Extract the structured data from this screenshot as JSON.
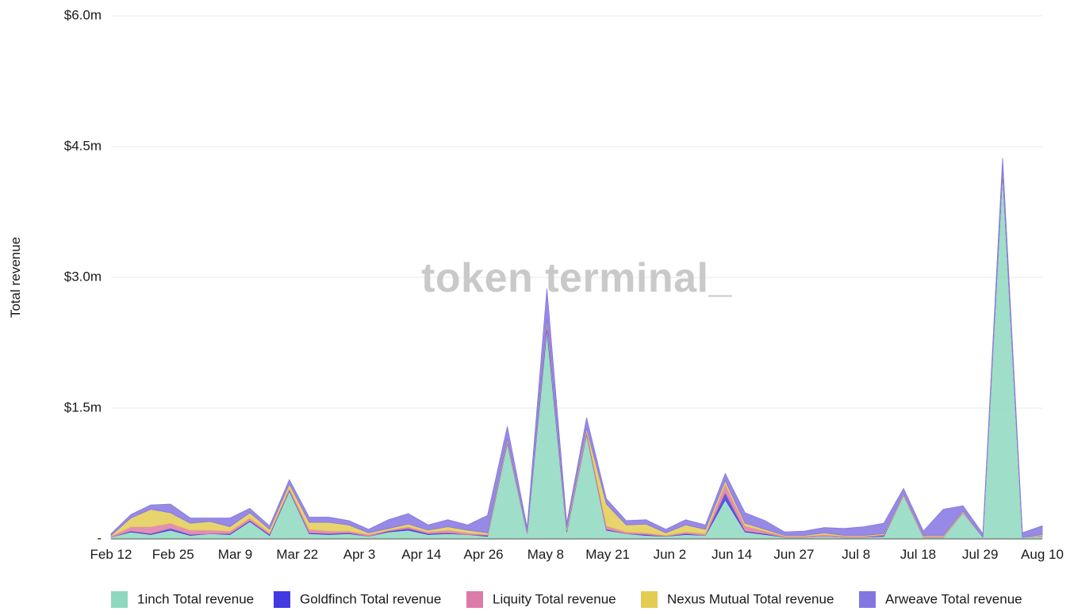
{
  "watermark": "token terminal_",
  "colors": {
    "1inch": "#8ed8c0",
    "Goldfinch": "#4339e0",
    "Liquity": "#dd7ba8",
    "Nexus Mutual": "#e3cc52",
    "Arweave": "#8476e2"
  },
  "chart_data": {
    "type": "area",
    "stacked": true,
    "ylabel": "Total revenue",
    "xlabel": "",
    "ylim": [
      0,
      6.0
    ],
    "y_unit": "$m",
    "y_ticks": [
      {
        "value": 0,
        "label": "-"
      },
      {
        "value": 1.5,
        "label": "$1.5m"
      },
      {
        "value": 3.0,
        "label": "$3.0m"
      },
      {
        "value": 4.5,
        "label": "$4.5m"
      },
      {
        "value": 6.0,
        "label": "$6.0m"
      }
    ],
    "x_ticks": [
      "Feb 12",
      "Feb 25",
      "Mar 9",
      "Mar 22",
      "Apr 3",
      "Apr 14",
      "Apr 26",
      "May 8",
      "May 21",
      "Jun 2",
      "Jun 14",
      "Jun 27",
      "Jul 8",
      "Jul 18",
      "Jul 29",
      "Aug 10"
    ],
    "grid": true,
    "legend_position": "bottom",
    "x": [
      "Feb 12",
      "Feb 17",
      "Feb 21",
      "Feb 25",
      "Mar 1",
      "Mar 5",
      "Mar 9",
      "Mar 13",
      "Mar 18",
      "Mar 22",
      "Mar 26",
      "Mar 30",
      "Apr 3",
      "Apr 6",
      "Apr 10",
      "Apr 14",
      "Apr 18",
      "Apr 22",
      "Apr 26",
      "May 2",
      "May 5",
      "May 8",
      "May 11",
      "May 14",
      "May 17",
      "May 21",
      "May 25",
      "May 29",
      "Jun 2",
      "Jun 6",
      "Jun 10",
      "Jun 14",
      "Jun 18",
      "Jun 22",
      "Jun 27",
      "Jul 1",
      "Jul 5",
      "Jul 8",
      "Jul 12",
      "Jul 15",
      "Jul 18",
      "Jul 22",
      "Jul 26",
      "Jul 29",
      "Aug 2",
      "Aug 4",
      "Aug 7",
      "Aug 10"
    ],
    "series": [
      {
        "name": "1inch Total revenue",
        "values": [
          0.02,
          0.08,
          0.05,
          0.1,
          0.04,
          0.06,
          0.05,
          0.2,
          0.04,
          0.55,
          0.06,
          0.05,
          0.06,
          0.03,
          0.08,
          0.1,
          0.05,
          0.06,
          0.05,
          0.03,
          1.1,
          0.06,
          2.4,
          0.08,
          1.2,
          0.1,
          0.06,
          0.04,
          0.03,
          0.05,
          0.04,
          0.45,
          0.08,
          0.05,
          0.02,
          0.02,
          0.03,
          0.02,
          0.02,
          0.03,
          0.5,
          0.02,
          0.02,
          0.3,
          0.02,
          4.2,
          0.02,
          0.03
        ]
      },
      {
        "name": "Goldfinch Total revenue",
        "values": [
          0.0,
          0.01,
          0.01,
          0.02,
          0.01,
          0.0,
          0.01,
          0.01,
          0.01,
          0.01,
          0.01,
          0.01,
          0.01,
          0.0,
          0.01,
          0.02,
          0.01,
          0.01,
          0.0,
          0.01,
          0.01,
          0.0,
          0.05,
          0.01,
          0.01,
          0.01,
          0.0,
          0.01,
          0.0,
          0.01,
          0.0,
          0.08,
          0.01,
          0.01,
          0.0,
          0.0,
          0.0,
          0.0,
          0.0,
          0.01,
          0.0,
          0.0,
          0.0,
          0.0,
          0.0,
          0.02,
          0.0,
          0.0
        ]
      },
      {
        "name": "Liquity Total revenue",
        "values": [
          0.01,
          0.05,
          0.08,
          0.06,
          0.05,
          0.04,
          0.03,
          0.03,
          0.02,
          0.02,
          0.04,
          0.03,
          0.02,
          0.02,
          0.01,
          0.02,
          0.02,
          0.03,
          0.02,
          0.01,
          0.02,
          0.01,
          0.04,
          0.02,
          0.03,
          0.04,
          0.02,
          0.02,
          0.01,
          0.02,
          0.02,
          0.1,
          0.06,
          0.03,
          0.01,
          0.01,
          0.02,
          0.01,
          0.01,
          0.01,
          0.01,
          0.01,
          0.01,
          0.01,
          0.0,
          0.02,
          0.0,
          0.01
        ]
      },
      {
        "name": "Nexus Mutual Total revenue",
        "values": [
          0.01,
          0.1,
          0.2,
          0.12,
          0.08,
          0.1,
          0.05,
          0.06,
          0.04,
          0.05,
          0.08,
          0.1,
          0.07,
          0.02,
          0.02,
          0.03,
          0.02,
          0.04,
          0.03,
          0.02,
          0.02,
          0.01,
          0.03,
          0.02,
          0.03,
          0.25,
          0.08,
          0.1,
          0.03,
          0.08,
          0.05,
          0.04,
          0.03,
          0.02,
          0.01,
          0.01,
          0.02,
          0.01,
          0.01,
          0.01,
          0.01,
          0.01,
          0.01,
          0.01,
          0.0,
          0.01,
          0.0,
          0.01
        ]
      },
      {
        "name": "Arweave Total revenue",
        "values": [
          0.02,
          0.04,
          0.05,
          0.1,
          0.06,
          0.04,
          0.1,
          0.05,
          0.04,
          0.05,
          0.06,
          0.06,
          0.05,
          0.04,
          0.1,
          0.12,
          0.06,
          0.08,
          0.06,
          0.2,
          0.14,
          0.05,
          0.35,
          0.05,
          0.12,
          0.06,
          0.05,
          0.05,
          0.04,
          0.06,
          0.05,
          0.08,
          0.12,
          0.1,
          0.04,
          0.05,
          0.06,
          0.08,
          0.1,
          0.12,
          0.06,
          0.05,
          0.3,
          0.06,
          0.04,
          0.12,
          0.05,
          0.1
        ]
      }
    ]
  }
}
